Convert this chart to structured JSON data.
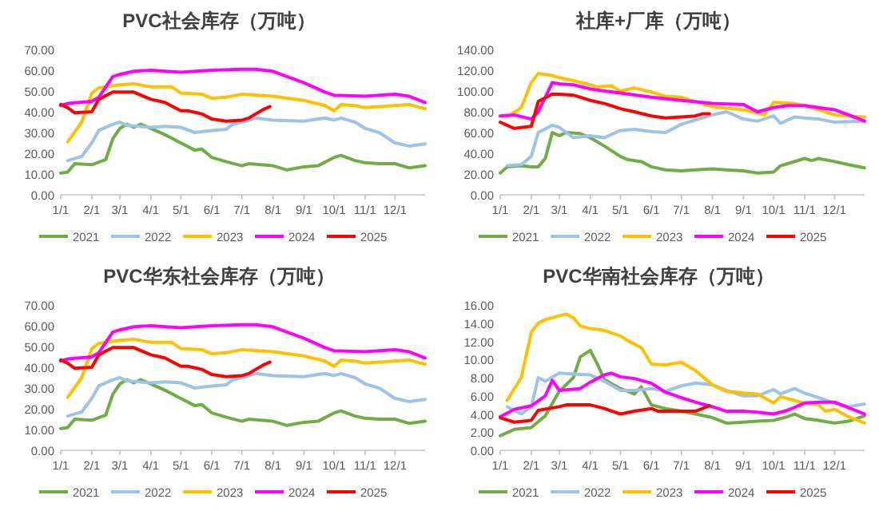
{
  "chart_data": [
    {
      "type": "line",
      "title": "PVC社会库存（万吨）",
      "legend": "bottom",
      "grid": false,
      "marker": "none",
      "line_style": "solid",
      "xlim": [
        "--01-01",
        "--12-31"
      ],
      "xticks": [
        {
          "value": "--01-01",
          "label": "1/1"
        },
        {
          "value": "--02-01",
          "label": "2/1"
        },
        {
          "value": "--03-01",
          "label": "3/1"
        },
        {
          "value": "--04-01",
          "label": "4/1"
        },
        {
          "value": "--05-01",
          "label": "5/1"
        },
        {
          "value": "--06-01",
          "label": "6/1"
        },
        {
          "value": "--07-01",
          "label": "7/1"
        },
        {
          "value": "--08-01",
          "label": "8/1"
        },
        {
          "value": "--09-01",
          "label": "9/1"
        },
        {
          "value": "--10-01",
          "label": "10/1"
        },
        {
          "value": "--11-01",
          "label": "11/1"
        },
        {
          "value": "--12-01",
          "label": "12/1"
        }
      ],
      "ylim": [
        0,
        70
      ],
      "yticks": [
        {
          "value": 0,
          "label": "0.00"
        },
        {
          "value": 10,
          "label": "10.00"
        },
        {
          "value": 20,
          "label": "20.00"
        },
        {
          "value": 30,
          "label": "30.00"
        },
        {
          "value": 40,
          "label": "40.00"
        },
        {
          "value": 50,
          "label": "50.00"
        },
        {
          "value": 60,
          "label": "60.00"
        },
        {
          "value": 70,
          "label": "70.00"
        }
      ],
      "series": [
        {
          "name": "2021",
          "color": "#70ad47",
          "x": [
            "--01-01",
            "--01-08",
            "--01-15",
            "--02-01",
            "--02-15",
            "--02-22",
            "--03-01",
            "--03-08",
            "--03-15",
            "--03-22",
            "--04-01",
            "--04-15",
            "--05-01",
            "--05-15",
            "--05-22",
            "--06-01",
            "--06-15",
            "--07-01",
            "--07-08",
            "--08-01",
            "--08-15",
            "--09-01",
            "--09-15",
            "--10-01",
            "--10-08",
            "--10-22",
            "--11-01",
            "--11-15",
            "--12-01",
            "--12-15",
            "--12-31"
          ],
          "values": [
            10.5,
            11,
            15,
            14.5,
            17,
            27,
            32,
            34,
            32.5,
            34,
            32,
            29,
            25,
            21.5,
            22,
            18,
            16,
            14,
            15,
            14,
            12,
            13.5,
            14,
            18,
            19,
            16.5,
            15.5,
            15,
            15,
            13,
            14
          ]
        },
        {
          "name": "2022",
          "color": "#9dc3e6",
          "x": [
            "--01-08",
            "--01-22",
            "--02-01",
            "--02-08",
            "--02-22",
            "--03-01",
            "--03-08",
            "--04-01",
            "--04-15",
            "--05-01",
            "--05-15",
            "--06-01",
            "--06-15",
            "--06-22",
            "--07-01",
            "--07-15",
            "--08-01",
            "--09-01",
            "--09-22",
            "--10-01",
            "--10-08",
            "--10-22",
            "--11-01",
            "--11-15",
            "--12-01",
            "--12-15",
            "--12-31"
          ],
          "values": [
            16.5,
            18.5,
            25,
            31,
            34,
            35,
            33.5,
            32.5,
            33,
            32.5,
            30,
            31,
            31.5,
            34,
            35,
            37,
            36,
            35.5,
            37,
            36,
            37,
            35,
            32,
            30,
            25,
            23.5,
            24.5
          ]
        },
        {
          "name": "2023",
          "color": "#ffc000",
          "x": [
            "--01-08",
            "--01-22",
            "--02-01",
            "--02-08",
            "--03-01",
            "--03-15",
            "--04-01",
            "--04-22",
            "--05-01",
            "--05-22",
            "--06-01",
            "--06-15",
            "--07-01",
            "--08-01",
            "--09-01",
            "--09-22",
            "--10-01",
            "--10-08",
            "--10-22",
            "--11-01",
            "--12-01",
            "--12-15",
            "--12-31"
          ],
          "values": [
            25.5,
            35,
            49,
            51.5,
            53,
            53.5,
            52,
            52,
            49,
            48.5,
            46.5,
            47,
            48.5,
            47.5,
            45.5,
            43,
            40.5,
            43.5,
            43,
            42,
            43,
            43.5,
            41.5
          ]
        },
        {
          "name": "2024",
          "color": "#ff00ff",
          "x": [
            "--01-01",
            "--01-08",
            "--02-01",
            "--02-08",
            "--02-22",
            "--03-01",
            "--03-15",
            "--04-01",
            "--05-01",
            "--06-01",
            "--07-01",
            "--07-15",
            "--08-01",
            "--08-15",
            "--09-01",
            "--09-22",
            "--10-01",
            "--11-01",
            "--12-01",
            "--12-15",
            "--12-31"
          ],
          "values": [
            43,
            44,
            45,
            47,
            57,
            58,
            59.5,
            60,
            59,
            60,
            60.5,
            60.5,
            59.5,
            57,
            54,
            49.5,
            48,
            47.5,
            48.5,
            47.5,
            44.5
          ]
        },
        {
          "name": "2025",
          "color": "#ff0000",
          "x": [
            "--01-01",
            "--01-08",
            "--01-15",
            "--02-01",
            "--02-08",
            "--02-22",
            "--03-01",
            "--03-15",
            "--04-01",
            "--04-15",
            "--05-01",
            "--05-08",
            "--05-22",
            "--06-01",
            "--06-15",
            "--07-01",
            "--07-08",
            "--07-22",
            "--07-29"
          ],
          "values": [
            43.5,
            42,
            39.5,
            40,
            46,
            49.5,
            49.5,
            49.5,
            46,
            44.5,
            40.5,
            40.5,
            39,
            36.5,
            35.5,
            36,
            37,
            41,
            42.5
          ]
        }
      ]
    },
    {
      "type": "line",
      "title": "社库+厂库（万吨）",
      "legend": "bottom",
      "grid": false,
      "marker": "none",
      "line_style": "solid",
      "xlim": [
        "--01-01",
        "--12-31"
      ],
      "xticks": [
        {
          "value": "--01-01",
          "label": "1/1"
        },
        {
          "value": "--02-01",
          "label": "2/1"
        },
        {
          "value": "--03-01",
          "label": "3/1"
        },
        {
          "value": "--04-01",
          "label": "4/1"
        },
        {
          "value": "--05-01",
          "label": "5/1"
        },
        {
          "value": "--06-01",
          "label": "6/1"
        },
        {
          "value": "--07-01",
          "label": "7/1"
        },
        {
          "value": "--08-01",
          "label": "8/1"
        },
        {
          "value": "--09-01",
          "label": "9/1"
        },
        {
          "value": "--10-01",
          "label": "10/1"
        },
        {
          "value": "--11-01",
          "label": "11/1"
        },
        {
          "value": "--12-01",
          "label": "12/1"
        }
      ],
      "ylim": [
        0,
        140
      ],
      "yticks": [
        {
          "value": 0,
          "label": "0.00"
        },
        {
          "value": 20,
          "label": "20.00"
        },
        {
          "value": 40,
          "label": "40.00"
        },
        {
          "value": 60,
          "label": "60.00"
        },
        {
          "value": 80,
          "label": "80.00"
        },
        {
          "value": 100,
          "label": "100.00"
        },
        {
          "value": 120,
          "label": "120.00"
        },
        {
          "value": 140,
          "label": "140.00"
        }
      ],
      "series": [
        {
          "name": "2021",
          "color": "#70ad47",
          "x": [
            "--01-01",
            "--01-08",
            "--01-22",
            "--02-01",
            "--02-08",
            "--02-15",
            "--02-22",
            "--03-01",
            "--03-08",
            "--03-22",
            "--04-01",
            "--04-15",
            "--05-01",
            "--05-08",
            "--05-22",
            "--06-01",
            "--06-15",
            "--07-01",
            "--07-15",
            "--08-01",
            "--08-15",
            "--09-01",
            "--09-15",
            "--10-01",
            "--10-08",
            "--11-01",
            "--11-08",
            "--11-15",
            "--12-01",
            "--12-15",
            "--12-31"
          ],
          "values": [
            21,
            27,
            28,
            27,
            27,
            35,
            60,
            57,
            60,
            59,
            55,
            47,
            37,
            34,
            32,
            27,
            24,
            23,
            24,
            25,
            24,
            23,
            21,
            22,
            28,
            35,
            33,
            35,
            32,
            29,
            26
          ]
        },
        {
          "name": "2022",
          "color": "#9dc3e6",
          "x": [
            "--01-08",
            "--01-22",
            "--02-01",
            "--02-08",
            "--02-22",
            "--03-01",
            "--03-15",
            "--04-01",
            "--04-15",
            "--05-01",
            "--05-15",
            "--06-01",
            "--06-15",
            "--07-01",
            "--07-15",
            "--08-01",
            "--08-15",
            "--09-01",
            "--09-15",
            "--10-01",
            "--10-08",
            "--10-22",
            "--11-01",
            "--11-15",
            "--12-01",
            "--12-31"
          ],
          "values": [
            28,
            29,
            37,
            60,
            67,
            65,
            55,
            57,
            55,
            62,
            63,
            61,
            60,
            68,
            72,
            77,
            80,
            73,
            71,
            76,
            69,
            75,
            74,
            73,
            70,
            71
          ]
        },
        {
          "name": "2023",
          "color": "#ffc000",
          "x": [
            "--01-08",
            "--01-22",
            "--02-01",
            "--02-08",
            "--02-22",
            "--03-01",
            "--03-15",
            "--04-01",
            "--04-08",
            "--04-22",
            "--05-01",
            "--05-15",
            "--06-01",
            "--06-15",
            "--07-01",
            "--08-01",
            "--09-01",
            "--09-22",
            "--10-01",
            "--10-22",
            "--11-01",
            "--11-15",
            "--12-01",
            "--12-31"
          ],
          "values": [
            75,
            84,
            108,
            117,
            115,
            113,
            110,
            106,
            104,
            105,
            100,
            103,
            99,
            95,
            94,
            85,
            82,
            77,
            89,
            88,
            86,
            82,
            77,
            75
          ]
        },
        {
          "name": "2024",
          "color": "#ff00ff",
          "x": [
            "--01-01",
            "--01-15",
            "--02-01",
            "--02-08",
            "--02-22",
            "--03-01",
            "--03-15",
            "--04-01",
            "--05-01",
            "--06-01",
            "--07-01",
            "--08-01",
            "--09-01",
            "--09-15",
            "--10-01",
            "--10-15",
            "--11-01",
            "--11-15",
            "--12-01",
            "--12-15",
            "--12-31"
          ],
          "values": [
            76,
            77,
            73,
            80,
            108,
            107,
            106,
            102,
            98,
            94,
            91,
            88,
            87,
            80,
            84,
            86,
            86,
            84,
            82,
            77,
            71
          ]
        },
        {
          "name": "2025",
          "color": "#ff0000",
          "x": [
            "--01-01",
            "--01-15",
            "--02-01",
            "--02-08",
            "--02-22",
            "--03-01",
            "--03-15",
            "--04-01",
            "--04-15",
            "--05-01",
            "--05-15",
            "--06-01",
            "--06-15",
            "--07-01",
            "--07-15",
            "--07-22",
            "--07-29"
          ],
          "values": [
            70,
            64,
            66,
            90,
            97,
            97,
            96,
            91,
            88,
            83,
            80,
            76,
            74,
            75,
            76,
            78,
            78
          ]
        }
      ]
    },
    {
      "type": "line",
      "title": "PVC华东社会库存（万吨）",
      "legend": "bottom",
      "grid": false,
      "marker": "none",
      "line_style": "solid",
      "xlim": [
        "--01-01",
        "--12-31"
      ],
      "xticks": [
        {
          "value": "--01-01",
          "label": "1/1"
        },
        {
          "value": "--02-01",
          "label": "2/1"
        },
        {
          "value": "--03-01",
          "label": "3/1"
        },
        {
          "value": "--04-01",
          "label": "4/1"
        },
        {
          "value": "--05-01",
          "label": "5/1"
        },
        {
          "value": "--06-01",
          "label": "6/1"
        },
        {
          "value": "--07-01",
          "label": "7/1"
        },
        {
          "value": "--08-01",
          "label": "8/1"
        },
        {
          "value": "--09-01",
          "label": "9/1"
        },
        {
          "value": "--10-01",
          "label": "10/1"
        },
        {
          "value": "--11-01",
          "label": "11/1"
        },
        {
          "value": "--12-01",
          "label": "12/1"
        }
      ],
      "ylim": [
        0,
        70
      ],
      "yticks": [
        {
          "value": 0,
          "label": "0.00"
        },
        {
          "value": 10,
          "label": "10.00"
        },
        {
          "value": 20,
          "label": "20.00"
        },
        {
          "value": 30,
          "label": "30.00"
        },
        {
          "value": 40,
          "label": "40.00"
        },
        {
          "value": 50,
          "label": "50.00"
        },
        {
          "value": 60,
          "label": "60.00"
        },
        {
          "value": 70,
          "label": "70.00"
        }
      ],
      "series": [
        {
          "name": "2021",
          "color": "#70ad47",
          "x": [
            "--01-01",
            "--01-08",
            "--01-15",
            "--02-01",
            "--02-15",
            "--02-22",
            "--03-01",
            "--03-08",
            "--03-15",
            "--03-22",
            "--04-01",
            "--04-15",
            "--05-01",
            "--05-15",
            "--05-22",
            "--06-01",
            "--06-15",
            "--07-01",
            "--07-08",
            "--08-01",
            "--08-15",
            "--09-01",
            "--09-15",
            "--10-01",
            "--10-08",
            "--10-22",
            "--11-01",
            "--11-15",
            "--12-01",
            "--12-15",
            "--12-31"
          ],
          "values": [
            10.5,
            11,
            15,
            14.5,
            17,
            27,
            32,
            34,
            32.5,
            34,
            32,
            29,
            25,
            21.5,
            22,
            18,
            16,
            14,
            15,
            14,
            12,
            13.5,
            14,
            18,
            19,
            16.5,
            15.5,
            15,
            15,
            13,
            14
          ]
        },
        {
          "name": "2022",
          "color": "#9dc3e6",
          "x": [
            "--01-08",
            "--01-22",
            "--02-01",
            "--02-08",
            "--02-22",
            "--03-01",
            "--03-08",
            "--04-01",
            "--04-15",
            "--05-01",
            "--05-15",
            "--06-01",
            "--06-15",
            "--06-22",
            "--07-01",
            "--07-15",
            "--08-01",
            "--09-01",
            "--09-22",
            "--10-01",
            "--10-08",
            "--10-22",
            "--11-01",
            "--11-15",
            "--12-01",
            "--12-15",
            "--12-31"
          ],
          "values": [
            16.5,
            18.5,
            25,
            31,
            34,
            35,
            33.5,
            32.5,
            33,
            32.5,
            30,
            31,
            31.5,
            34,
            35,
            37,
            36,
            35.5,
            37,
            36,
            37,
            35,
            32,
            30,
            25,
            23.5,
            24.5
          ]
        },
        {
          "name": "2023",
          "color": "#ffc000",
          "x": [
            "--01-08",
            "--01-22",
            "--02-01",
            "--02-08",
            "--03-01",
            "--03-15",
            "--04-01",
            "--04-22",
            "--05-01",
            "--05-22",
            "--06-01",
            "--06-15",
            "--07-01",
            "--08-01",
            "--09-01",
            "--09-22",
            "--10-01",
            "--10-08",
            "--10-22",
            "--11-01",
            "--12-01",
            "--12-15",
            "--12-31"
          ],
          "values": [
            25.5,
            35,
            49,
            51.5,
            53,
            53.5,
            52,
            52,
            49,
            48.5,
            46.5,
            47,
            48.5,
            47.5,
            45.5,
            43,
            40.5,
            43.5,
            43,
            42,
            43,
            43.5,
            41.5
          ]
        },
        {
          "name": "2024",
          "color": "#ff00ff",
          "x": [
            "--01-01",
            "--01-08",
            "--02-01",
            "--02-08",
            "--02-22",
            "--03-01",
            "--03-15",
            "--04-01",
            "--05-01",
            "--06-01",
            "--07-01",
            "--07-15",
            "--08-01",
            "--08-15",
            "--09-01",
            "--09-22",
            "--10-01",
            "--11-01",
            "--12-01",
            "--12-15",
            "--12-31"
          ],
          "values": [
            43,
            44,
            45,
            47,
            57,
            58,
            59.5,
            60,
            59,
            60,
            60.5,
            60.5,
            59.5,
            57,
            54,
            49.5,
            48,
            47.5,
            48.5,
            47.5,
            44.5
          ]
        },
        {
          "name": "2025",
          "color": "#ff0000",
          "x": [
            "--01-01",
            "--01-08",
            "--01-15",
            "--02-01",
            "--02-08",
            "--02-22",
            "--03-01",
            "--03-15",
            "--04-01",
            "--04-15",
            "--05-01",
            "--05-08",
            "--05-22",
            "--06-01",
            "--06-15",
            "--07-01",
            "--07-08",
            "--07-22",
            "--07-29"
          ],
          "values": [
            43.5,
            42,
            39.5,
            40,
            46,
            49.5,
            49.5,
            49.5,
            46,
            44.5,
            40.5,
            40.5,
            39,
            36.5,
            35.5,
            36,
            37,
            41,
            42.5
          ]
        }
      ]
    },
    {
      "type": "line",
      "title": "PVC华南社会库存（万吨）",
      "legend": "bottom",
      "grid": false,
      "marker": "none",
      "line_style": "solid",
      "xlim": [
        "--01-01",
        "--12-31"
      ],
      "xticks": [
        {
          "value": "--01-01",
          "label": "1/1"
        },
        {
          "value": "--02-01",
          "label": "2/1"
        },
        {
          "value": "--03-01",
          "label": "3/1"
        },
        {
          "value": "--04-01",
          "label": "4/1"
        },
        {
          "value": "--05-01",
          "label": "5/1"
        },
        {
          "value": "--06-01",
          "label": "6/1"
        },
        {
          "value": "--07-01",
          "label": "7/1"
        },
        {
          "value": "--08-01",
          "label": "8/1"
        },
        {
          "value": "--09-01",
          "label": "9/1"
        },
        {
          "value": "--10-01",
          "label": "10/1"
        },
        {
          "value": "--11-01",
          "label": "11/1"
        },
        {
          "value": "--12-01",
          "label": "12/1"
        }
      ],
      "ylim": [
        0,
        16
      ],
      "yticks": [
        {
          "value": 0,
          "label": "0.00"
        },
        {
          "value": 2,
          "label": "2.00"
        },
        {
          "value": 4,
          "label": "4.00"
        },
        {
          "value": 6,
          "label": "6.00"
        },
        {
          "value": 8,
          "label": "8.00"
        },
        {
          "value": 10,
          "label": "10.00"
        },
        {
          "value": 12,
          "label": "12.00"
        },
        {
          "value": 14,
          "label": "14.00"
        },
        {
          "value": 16,
          "label": "16.00"
        }
      ],
      "series": [
        {
          "name": "2021",
          "color": "#70ad47",
          "x": [
            "--01-01",
            "--01-15",
            "--02-01",
            "--02-15",
            "--03-01",
            "--03-15",
            "--03-22",
            "--04-01",
            "--04-08",
            "--04-15",
            "--05-01",
            "--05-15",
            "--05-22",
            "--06-01",
            "--06-15",
            "--07-01",
            "--07-15",
            "--08-01",
            "--08-15",
            "--09-01",
            "--09-15",
            "--10-01",
            "--10-15",
            "--10-22",
            "--11-01",
            "--11-15",
            "--12-01",
            "--12-15",
            "--12-31"
          ],
          "values": [
            1.6,
            2.3,
            2.5,
            3.8,
            6.5,
            8,
            10.3,
            11,
            9.5,
            7.8,
            6.8,
            6.2,
            7,
            5,
            4.6,
            4.3,
            4,
            3.6,
            3,
            3.1,
            3.2,
            3.3,
            3.7,
            4,
            3.5,
            3.3,
            3,
            3.2,
            3.8
          ]
        },
        {
          "name": "2022",
          "color": "#9dc3e6",
          "x": [
            "--01-08",
            "--01-22",
            "--02-01",
            "--02-08",
            "--02-15",
            "--03-01",
            "--03-15",
            "--04-01",
            "--04-15",
            "--05-01",
            "--05-15",
            "--06-01",
            "--06-15",
            "--07-01",
            "--07-15",
            "--08-01",
            "--08-15",
            "--09-01",
            "--09-15",
            "--10-01",
            "--10-08",
            "--10-22",
            "--11-01",
            "--11-15",
            "--12-01",
            "--12-15",
            "--12-31"
          ],
          "values": [
            4.8,
            4,
            4.8,
            8,
            7.6,
            8.5,
            8.4,
            8.3,
            7.6,
            6.6,
            6.6,
            6.8,
            6.5,
            7.1,
            7.4,
            7.2,
            6.6,
            6,
            6,
            6.7,
            6.2,
            6.8,
            6.3,
            5.8,
            5.2,
            4.8,
            5.1
          ]
        },
        {
          "name": "2023",
          "color": "#ffc000",
          "x": [
            "--01-08",
            "--01-22",
            "--02-01",
            "--02-08",
            "--02-15",
            "--03-01",
            "--03-08",
            "--03-15",
            "--03-22",
            "--04-01",
            "--04-15",
            "--05-01",
            "--05-08",
            "--05-22",
            "--06-01",
            "--06-15",
            "--07-01",
            "--07-15",
            "--08-01",
            "--08-15",
            "--09-01",
            "--09-15",
            "--10-01",
            "--10-08",
            "--10-22",
            "--11-01",
            "--11-15",
            "--11-22",
            "--12-01",
            "--12-15",
            "--12-31"
          ],
          "values": [
            5.5,
            8,
            13,
            14,
            14.4,
            14.8,
            15,
            14.6,
            13.7,
            13.4,
            13.2,
            12.6,
            12.1,
            11.3,
            9.5,
            9.4,
            9.7,
            8.8,
            7.2,
            6.5,
            6.3,
            6.2,
            5.2,
            5.9,
            5.5,
            5.2,
            5,
            4.3,
            4.5,
            3.7,
            3
          ]
        },
        {
          "name": "2024",
          "color": "#ff00ff",
          "x": [
            "--01-01",
            "--01-15",
            "--02-01",
            "--02-15",
            "--02-22",
            "--03-01",
            "--03-22",
            "--04-01",
            "--04-15",
            "--04-22",
            "--05-01",
            "--05-15",
            "--06-01",
            "--06-15",
            "--07-01",
            "--07-15",
            "--08-01",
            "--08-15",
            "--09-01",
            "--09-15",
            "--10-01",
            "--10-15",
            "--11-01",
            "--11-15",
            "--12-01",
            "--12-15",
            "--12-31"
          ],
          "values": [
            3.7,
            4.5,
            4.9,
            6,
            7.7,
            6.6,
            6.8,
            7.5,
            8.3,
            8.5,
            8.1,
            7.9,
            7.4,
            6.4,
            5.8,
            5.3,
            4.8,
            4.3,
            4.3,
            4.2,
            4,
            4.4,
            5.2,
            5.3,
            5.3,
            4.7,
            4
          ]
        },
        {
          "name": "2025",
          "color": "#ff0000",
          "x": [
            "--01-01",
            "--01-15",
            "--02-01",
            "--02-08",
            "--03-01",
            "--03-08",
            "--04-01",
            "--04-15",
            "--05-01",
            "--05-15",
            "--06-01",
            "--06-08",
            "--07-01",
            "--07-15",
            "--07-29"
          ],
          "values": [
            3.6,
            3.1,
            3.3,
            4.4,
            4.8,
            5,
            5,
            4.6,
            4,
            4.3,
            4.6,
            4.3,
            4.3,
            4.3,
            4.9
          ]
        }
      ]
    }
  ]
}
